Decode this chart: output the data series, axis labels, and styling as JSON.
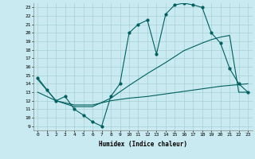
{
  "xlabel": "Humidex (Indice chaleur)",
  "background_color": "#c8eaf0",
  "grid_color": "#a0cccc",
  "line_color": "#006060",
  "xlim": [
    -0.5,
    23.5
  ],
  "ylim": [
    8.5,
    23.5
  ],
  "xticks": [
    0,
    1,
    2,
    3,
    4,
    5,
    6,
    7,
    8,
    9,
    10,
    11,
    12,
    13,
    14,
    15,
    16,
    17,
    18,
    19,
    20,
    21,
    22,
    23
  ],
  "yticks": [
    9,
    10,
    11,
    12,
    13,
    14,
    15,
    16,
    17,
    18,
    19,
    20,
    21,
    22,
    23
  ],
  "line1_x": [
    0,
    1,
    2,
    3,
    4,
    5,
    6,
    7,
    8,
    9,
    10,
    11,
    12,
    13,
    14,
    15,
    16,
    17,
    18,
    19,
    20,
    21,
    22,
    23
  ],
  "line1_y": [
    14.7,
    13.3,
    12.0,
    12.5,
    11.0,
    10.3,
    9.5,
    9.0,
    12.5,
    14.0,
    20.0,
    21.0,
    21.5,
    17.5,
    22.2,
    23.3,
    23.5,
    23.3,
    23.0,
    20.0,
    18.8,
    15.8,
    14.0,
    13.0
  ],
  "line2_x": [
    0,
    2,
    4,
    6,
    8,
    10,
    12,
    14,
    16,
    18,
    20,
    22,
    23
  ],
  "line2_y": [
    13.0,
    12.0,
    11.5,
    11.5,
    12.0,
    12.3,
    12.5,
    12.8,
    13.1,
    13.4,
    13.7,
    13.9,
    14.0
  ],
  "line3_x": [
    0,
    2,
    4,
    6,
    8,
    10,
    12,
    14,
    16,
    18,
    19,
    20,
    21,
    22,
    23
  ],
  "line3_y": [
    14.5,
    12.0,
    11.3,
    11.3,
    12.3,
    13.8,
    15.2,
    16.5,
    17.9,
    18.8,
    19.2,
    19.5,
    19.7,
    13.0,
    13.0
  ]
}
